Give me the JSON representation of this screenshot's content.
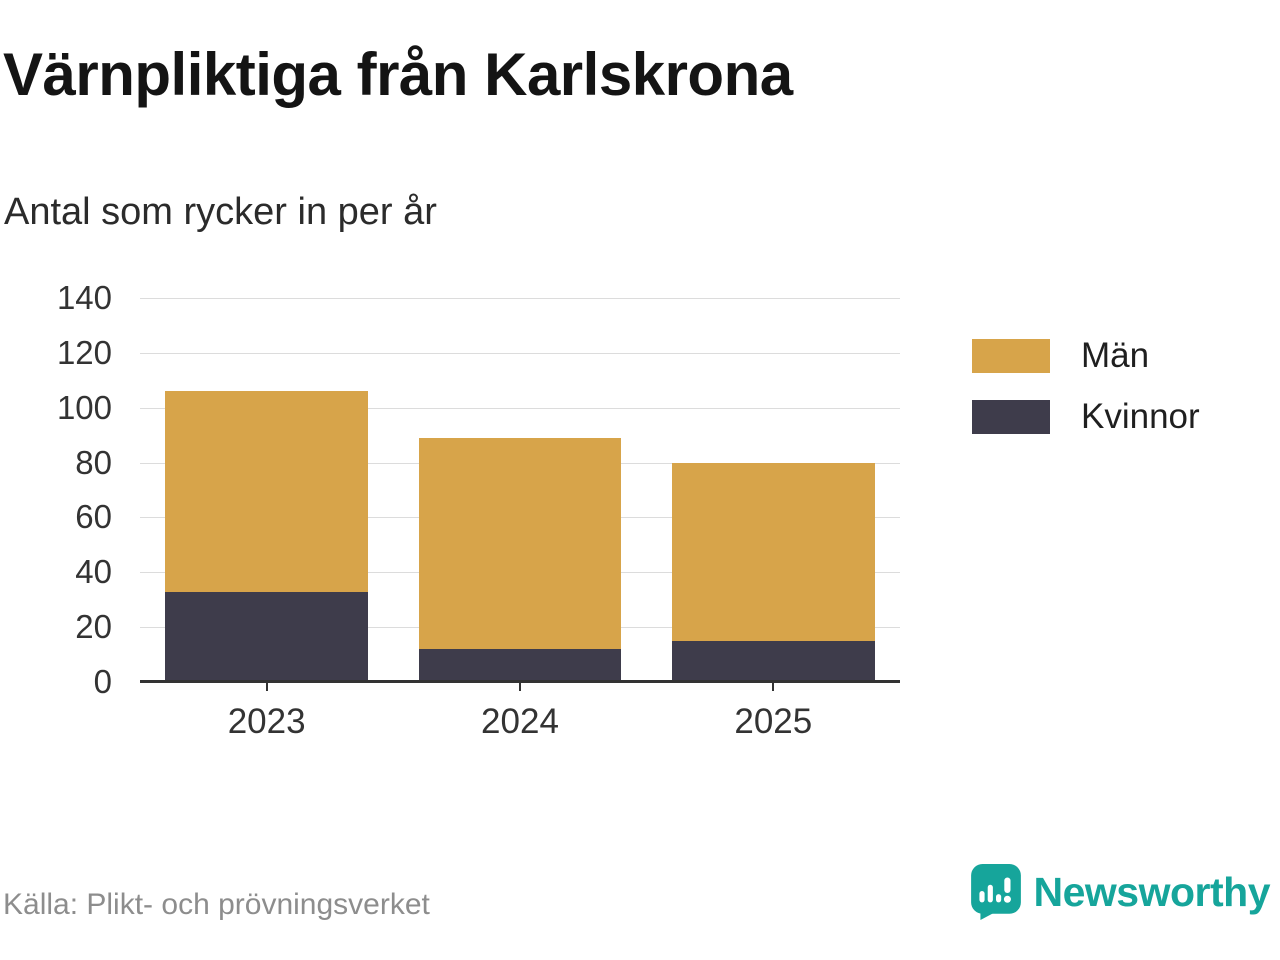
{
  "page": {
    "title": "Värnpliktiga från Karlskrona",
    "subtitle": "Antal som rycker in per år",
    "source": "Källa: Plikt- och prövningsverket",
    "brand": "Newsworthy"
  },
  "colors": {
    "men": "#d7a44a",
    "women": "#3e3c4b",
    "brand_teal": "#16a59b",
    "gridline": "#dcdcdc",
    "axis": "#333333"
  },
  "chart_data": {
    "type": "bar",
    "stacked": true,
    "title": "Värnpliktiga från Karlskrona",
    "subtitle": "Antal som rycker in per år",
    "categories": [
      "2023",
      "2024",
      "2025"
    ],
    "series": [
      {
        "name": "Kvinnor",
        "color": "#3e3c4b",
        "values": [
          33,
          12,
          15
        ]
      },
      {
        "name": "Män",
        "color": "#d7a44a",
        "values": [
          73,
          77,
          65
        ]
      }
    ],
    "totals": [
      106,
      89,
      80
    ],
    "xlabel": "",
    "ylabel": "",
    "ylim": [
      0,
      140
    ],
    "yticks": [
      0,
      20,
      40,
      60,
      80,
      100,
      120,
      140
    ],
    "grid": true,
    "legend_position": "right",
    "legend": [
      {
        "label": "Män",
        "color": "#d7a44a"
      },
      {
        "label": "Kvinnor",
        "color": "#3e3c4b"
      }
    ]
  }
}
